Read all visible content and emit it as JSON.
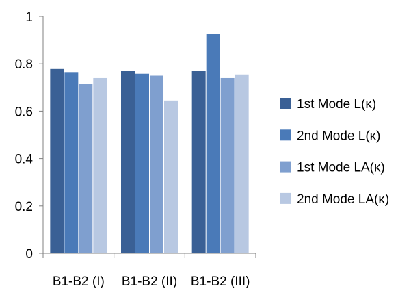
{
  "chart_data": {
    "type": "bar",
    "title": "",
    "xlabel": "",
    "ylabel": "",
    "categories": [
      "B1-B2 (I)",
      "B1-B2 (II)",
      "B1-B2 (III)"
    ],
    "ylim": [
      0,
      1
    ],
    "yticks": [
      0,
      0.2,
      0.4,
      0.6,
      0.8,
      1
    ],
    "ytick_labels": [
      "0",
      "0.2",
      "0.4",
      "0.6",
      "0.8",
      "1"
    ],
    "grid": false,
    "legend_position": "right",
    "series": [
      {
        "name": "1st Mode L(κ)",
        "color": "#3a6095",
        "values": [
          0.778,
          0.77,
          0.77
        ]
      },
      {
        "name": "2nd Mode L(κ)",
        "color": "#4a7ab8",
        "values": [
          0.765,
          0.758,
          0.925
        ]
      },
      {
        "name": "1st Mode LA(κ)",
        "color": "#7f9fcf",
        "values": [
          0.715,
          0.75,
          0.74
        ]
      },
      {
        "name": "2nd Mode LA(κ)",
        "color": "#b8c8e2",
        "values": [
          0.74,
          0.645,
          0.755
        ]
      }
    ]
  }
}
